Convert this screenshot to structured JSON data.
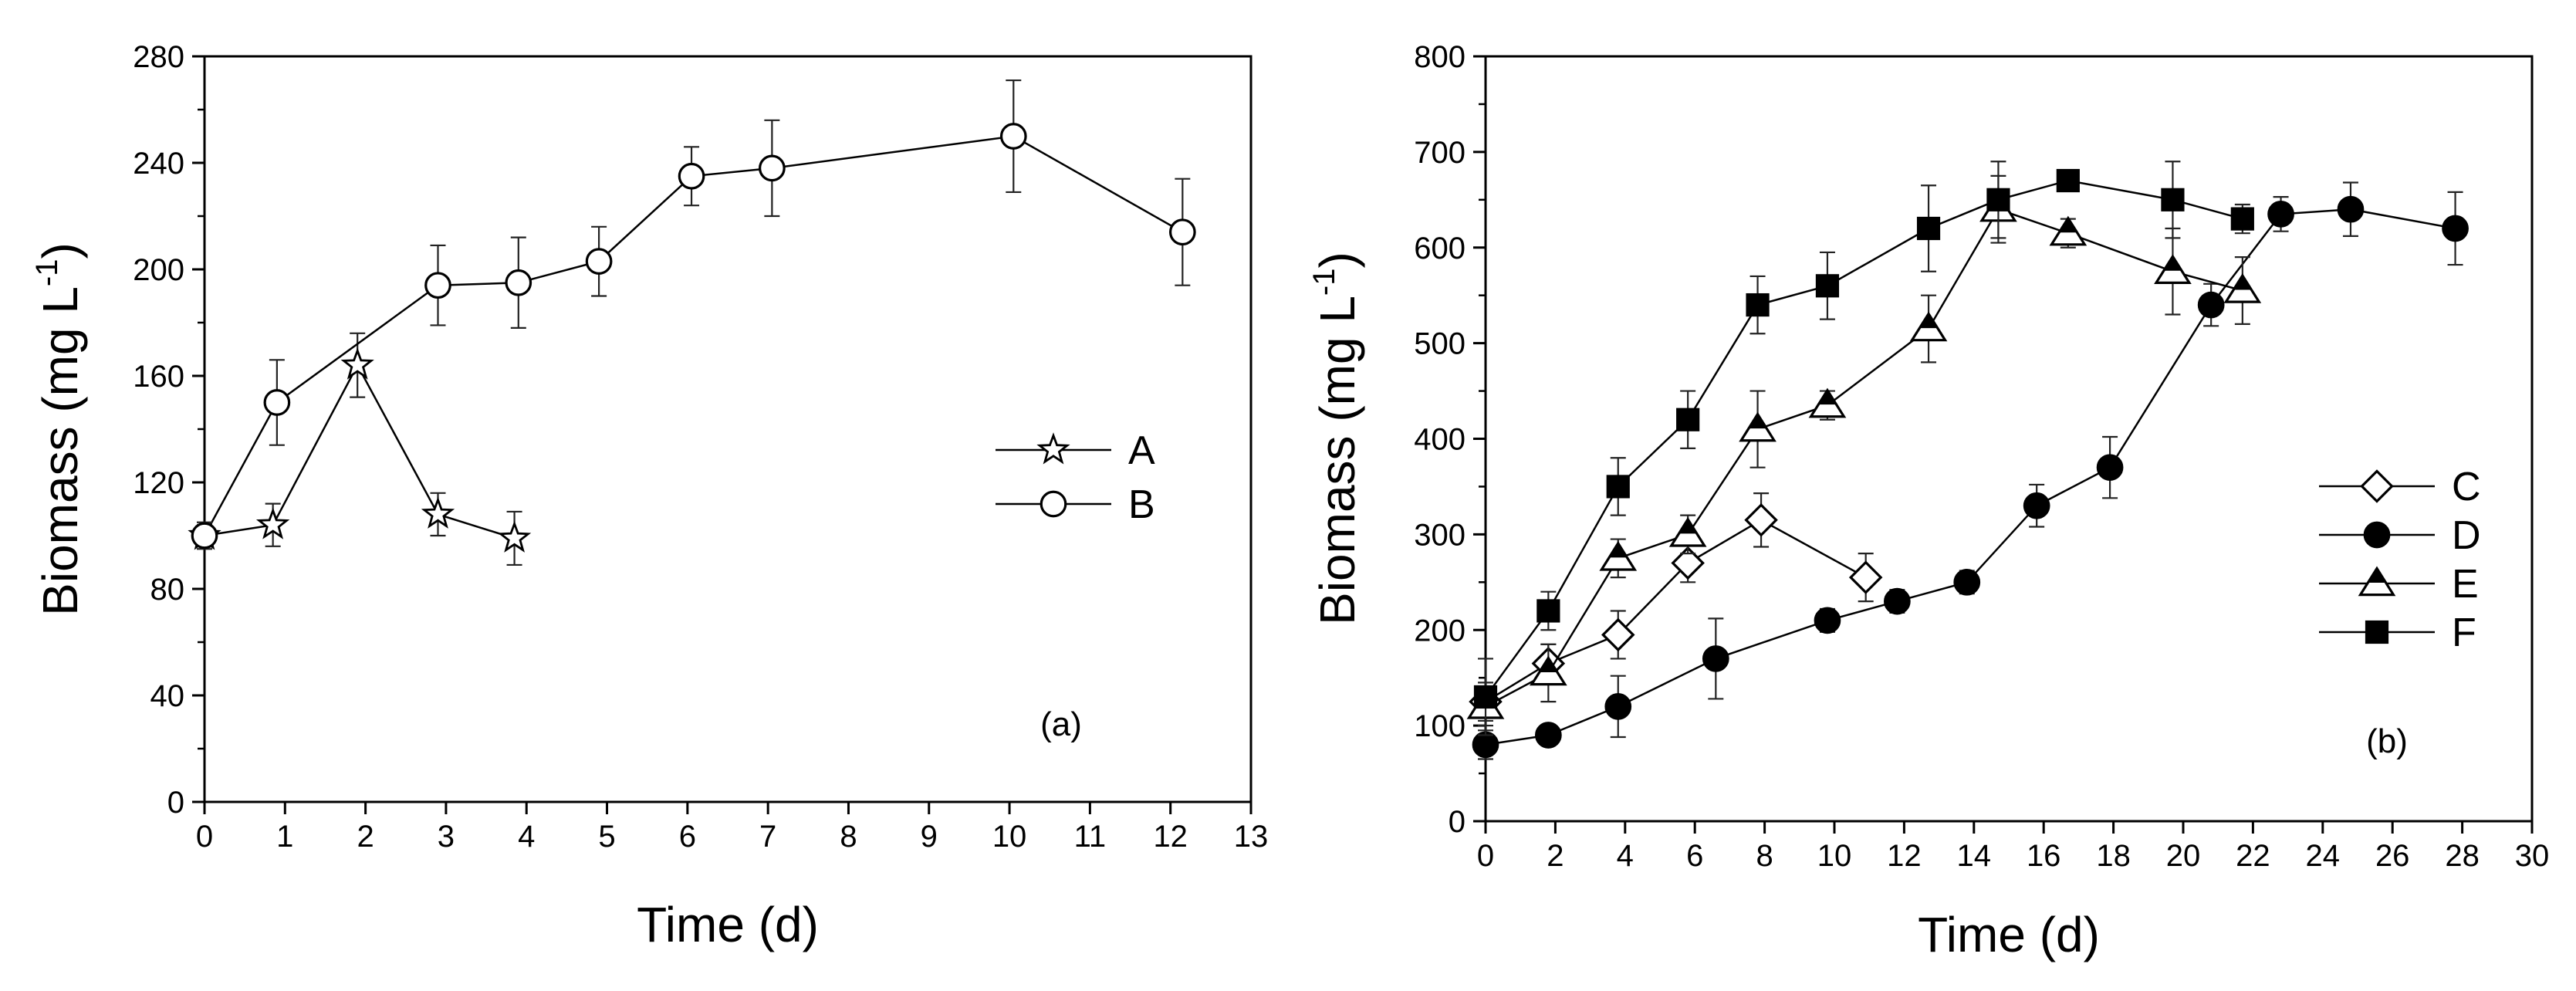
{
  "chart_data": [
    {
      "type": "line",
      "panel_label": "(a)",
      "xlabel": "Time (d)",
      "ylabel": "Biomass",
      "ylabel_unit": "(mg L",
      "ylabel_unit_sup": "-1",
      "ylabel_unit_close": ")",
      "xlim": [
        0,
        13
      ],
      "ylim": [
        0,
        280
      ],
      "xticks": [
        0,
        1,
        2,
        3,
        4,
        5,
        6,
        7,
        8,
        9,
        10,
        11,
        12,
        13
      ],
      "yticks": [
        0,
        40,
        80,
        120,
        160,
        200,
        240,
        280
      ],
      "legend_position": "right",
      "series": [
        {
          "name": "A",
          "marker": "star-open",
          "x": [
            0,
            0.85,
            1.9,
            2.9,
            3.85
          ],
          "y": [
            100,
            104,
            164,
            108,
            99
          ],
          "err": [
            4,
            8,
            12,
            8,
            10
          ]
        },
        {
          "name": "B",
          "marker": "circle-open",
          "x": [
            0,
            0.9,
            2.9,
            3.9,
            4.9,
            6.05,
            7.05,
            10.05,
            12.15
          ],
          "y": [
            100,
            150,
            194,
            195,
            203,
            235,
            238,
            250,
            214
          ],
          "err": [
            5,
            16,
            15,
            17,
            13,
            11,
            18,
            21,
            20
          ]
        }
      ]
    },
    {
      "type": "line",
      "panel_label": "(b)",
      "xlabel": "Time (d)",
      "ylabel": "Biomass",
      "ylabel_unit": "(mg L",
      "ylabel_unit_sup": "-1",
      "ylabel_unit_close": ")",
      "xlim": [
        0,
        30
      ],
      "ylim": [
        0,
        800
      ],
      "xticks": [
        0,
        2,
        4,
        6,
        8,
        10,
        12,
        14,
        16,
        18,
        20,
        22,
        24,
        26,
        28,
        30
      ],
      "yticks": [
        0,
        100,
        200,
        300,
        400,
        500,
        600,
        700,
        800
      ],
      "legend_position": "right",
      "series": [
        {
          "name": "C",
          "marker": "diamond-open",
          "x": [
            0,
            1.8,
            3.8,
            5.8,
            7.9,
            10.9
          ],
          "y": [
            125,
            165,
            195,
            270,
            315,
            255
          ],
          "err": [
            20,
            20,
            25,
            20,
            28,
            25
          ]
        },
        {
          "name": "D",
          "marker": "circle-filled",
          "x": [
            0,
            1.8,
            3.8,
            6.6,
            9.8,
            11.8,
            13.8,
            15.8,
            17.9,
            20.8,
            22.8,
            24.8,
            27.8
          ],
          "y": [
            80,
            90,
            120,
            170,
            210,
            230,
            250,
            330,
            370,
            540,
            635,
            640,
            620
          ],
          "err": [
            15,
            10,
            32,
            42,
            12,
            12,
            12,
            22,
            32,
            22,
            18,
            28,
            38
          ]
        },
        {
          "name": "E",
          "marker": "triangle-half",
          "x": [
            0,
            1.8,
            3.8,
            5.8,
            7.8,
            9.8,
            12.7,
            14.7,
            16.7,
            19.7,
            21.7
          ],
          "y": [
            120,
            155,
            275,
            300,
            410,
            435,
            515,
            640,
            615,
            575,
            555
          ],
          "err": [
            20,
            30,
            20,
            20,
            40,
            15,
            35,
            35,
            15,
            45,
            35
          ]
        },
        {
          "name": "F",
          "marker": "square-filled",
          "x": [
            0,
            1.8,
            3.8,
            5.8,
            7.8,
            9.8,
            12.7,
            14.7,
            16.7,
            19.7,
            21.7
          ],
          "y": [
            130,
            220,
            350,
            420,
            540,
            560,
            620,
            650,
            670,
            650,
            630
          ],
          "err": [
            40,
            20,
            30,
            30,
            30,
            35,
            45,
            40,
            10,
            40,
            15
          ]
        }
      ]
    }
  ]
}
